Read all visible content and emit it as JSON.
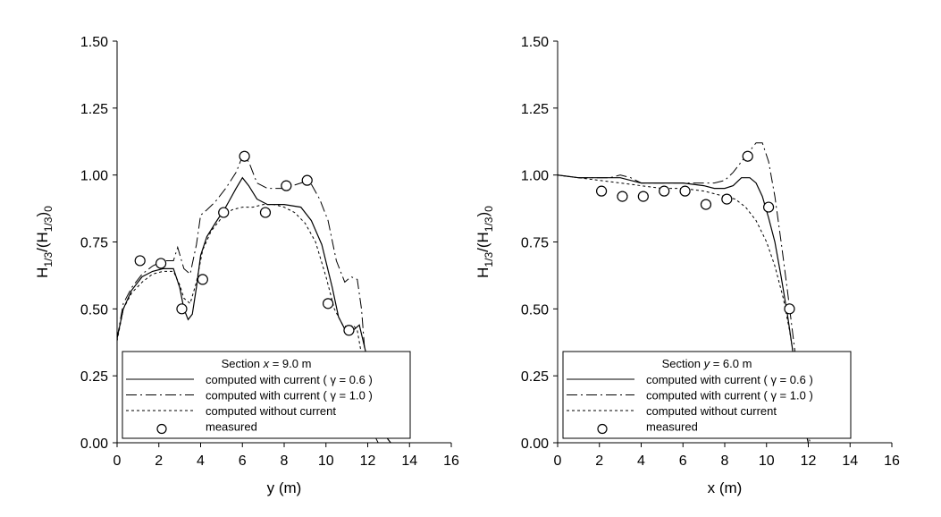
{
  "chart_data": [
    {
      "type": "line",
      "xlabel": "y (m)",
      "ylabel": "H",
      "ylabel_sub1": "1/3",
      "ylabel_mid": "/(H",
      "ylabel_sub2": "1/3",
      "ylabel_end": ")",
      "ylabel_sub3": "0",
      "xlim": [
        0,
        16
      ],
      "ylim": [
        0,
        1.5
      ],
      "xticks": [
        "0",
        "2",
        "4",
        "6",
        "8",
        "10",
        "12",
        "14",
        "16"
      ],
      "yticks": [
        "0.00",
        "0.25",
        "0.50",
        "0.75",
        "1.00",
        "1.25",
        "1.50"
      ],
      "grid": false,
      "legend": {
        "position": "bottom-left",
        "title_pre": "Section ",
        "title_var": "x",
        "title_post": " = 9.0 m",
        "entries": [
          "computed with current ( γ = 0.6 )",
          "computed with current ( γ = 1.0 )",
          "computed without current",
          "measured"
        ]
      },
      "series": [
        {
          "style": "solid",
          "x": [
            0,
            0.3,
            0.7,
            1.2,
            1.7,
            2.2,
            2.7,
            3.0,
            3.2,
            3.4,
            3.6,
            3.8,
            4.0,
            4.3,
            4.7,
            5.2,
            5.7,
            6.0,
            6.3,
            6.7,
            7.2,
            8.0,
            8.8,
            9.3,
            9.8,
            10.3,
            10.6,
            11.0,
            11.3,
            11.6,
            11.9,
            12.2,
            12.6,
            12.9,
            13.1
          ],
          "y": [
            0.39,
            0.5,
            0.57,
            0.62,
            0.64,
            0.65,
            0.65,
            0.58,
            0.5,
            0.46,
            0.48,
            0.58,
            0.7,
            0.77,
            0.82,
            0.88,
            0.95,
            0.99,
            0.96,
            0.91,
            0.89,
            0.89,
            0.88,
            0.83,
            0.74,
            0.58,
            0.47,
            0.41,
            0.42,
            0.44,
            0.34,
            0.19,
            0.07,
            0.02,
            0.0
          ]
        },
        {
          "style": "dashdot",
          "x": [
            0,
            0.3,
            0.7,
            1.2,
            1.7,
            2.2,
            2.7,
            2.9,
            3.2,
            3.5,
            3.8,
            4.0,
            4.3,
            4.7,
            5.2,
            5.7,
            6.0,
            6.3,
            6.7,
            7.2,
            8.0,
            8.8,
            9.2,
            9.7,
            10.1,
            10.5,
            10.9,
            11.2,
            11.5,
            11.7,
            11.9,
            12.1,
            12.3,
            12.5
          ],
          "y": [
            0.39,
            0.52,
            0.58,
            0.63,
            0.66,
            0.68,
            0.68,
            0.73,
            0.65,
            0.63,
            0.74,
            0.85,
            0.87,
            0.9,
            0.95,
            1.01,
            1.07,
            1.05,
            0.97,
            0.95,
            0.95,
            0.97,
            0.98,
            0.91,
            0.83,
            0.68,
            0.6,
            0.62,
            0.61,
            0.5,
            0.3,
            0.12,
            0.03,
            0.0
          ]
        },
        {
          "style": "dotted",
          "x": [
            0,
            0.3,
            0.7,
            1.2,
            1.7,
            2.2,
            2.7,
            3.0,
            3.2,
            3.5,
            3.8,
            4.1,
            4.5,
            5.0,
            5.5,
            6.0,
            6.5,
            7.0,
            7.5,
            8.0,
            8.5,
            9.0,
            9.5,
            10.0,
            10.4,
            10.8,
            11.1,
            11.3,
            11.5,
            11.7,
            11.9,
            12.1,
            12.3
          ],
          "y": [
            0.38,
            0.5,
            0.56,
            0.6,
            0.63,
            0.64,
            0.64,
            0.59,
            0.54,
            0.52,
            0.6,
            0.72,
            0.79,
            0.84,
            0.87,
            0.88,
            0.88,
            0.89,
            0.89,
            0.88,
            0.86,
            0.82,
            0.75,
            0.62,
            0.5,
            0.44,
            0.43,
            0.44,
            0.42,
            0.33,
            0.2,
            0.08,
            0.02
          ]
        },
        {
          "style": "markers",
          "x": [
            1.1,
            2.1,
            3.1,
            4.1,
            5.1,
            6.1,
            7.1,
            8.1,
            9.1,
            10.1,
            11.1
          ],
          "y": [
            0.68,
            0.67,
            0.5,
            0.61,
            0.86,
            1.07,
            0.86,
            0.96,
            0.98,
            0.52,
            0.42
          ]
        }
      ]
    },
    {
      "type": "line",
      "xlabel": "x (m)",
      "ylabel": "H",
      "ylabel_sub1": "1/3",
      "ylabel_mid": "/(H",
      "ylabel_sub2": "1/3",
      "ylabel_end": ")",
      "ylabel_sub3": "0",
      "xlim": [
        0,
        16
      ],
      "ylim": [
        0,
        1.5
      ],
      "xticks": [
        "0",
        "2",
        "4",
        "6",
        "8",
        "10",
        "12",
        "14",
        "16"
      ],
      "yticks": [
        "0.00",
        "0.25",
        "0.50",
        "0.75",
        "1.00",
        "1.25",
        "1.50"
      ],
      "grid": false,
      "legend": {
        "position": "bottom-left",
        "title_pre": "Section ",
        "title_var": "y",
        "title_post": " = 6.0 m",
        "entries": [
          "computed with current ( γ = 0.6 )",
          "computed with current ( γ = 1.0 )",
          "computed without current",
          "measured"
        ]
      },
      "series": [
        {
          "style": "solid",
          "x": [
            0,
            1,
            2,
            2.5,
            3,
            3.5,
            4,
            5,
            6,
            7,
            7.5,
            8,
            8.4,
            8.8,
            9.2,
            9.5,
            9.8,
            10.1,
            10.4,
            10.7,
            11.0,
            11.3,
            11.6,
            11.9,
            12.0
          ],
          "y": [
            1.0,
            0.99,
            0.99,
            0.99,
            0.99,
            0.98,
            0.97,
            0.97,
            0.97,
            0.96,
            0.95,
            0.95,
            0.96,
            0.99,
            0.99,
            0.97,
            0.92,
            0.84,
            0.75,
            0.62,
            0.48,
            0.32,
            0.15,
            0.03,
            0.0
          ]
        },
        {
          "style": "dashdot",
          "x": [
            0,
            1,
            2,
            2.5,
            3,
            3.5,
            4,
            5,
            6,
            7,
            7.5,
            8,
            8.4,
            8.8,
            9.2,
            9.5,
            9.8,
            10.1,
            10.4,
            10.7,
            11.0,
            11.3,
            11.6,
            11.9,
            12.1
          ],
          "y": [
            1.0,
            0.99,
            0.99,
            0.99,
            1.0,
            0.99,
            0.97,
            0.97,
            0.97,
            0.97,
            0.97,
            0.98,
            1.01,
            1.05,
            1.09,
            1.12,
            1.12,
            1.05,
            0.92,
            0.75,
            0.57,
            0.38,
            0.2,
            0.05,
            0.0
          ]
        },
        {
          "style": "dotted",
          "x": [
            0,
            1,
            2,
            3,
            4,
            5,
            6,
            7,
            8,
            8.5,
            9.0,
            9.5,
            10.0,
            10.4,
            10.8,
            11.1,
            11.4,
            11.7,
            12.0
          ],
          "y": [
            1.0,
            0.99,
            0.98,
            0.97,
            0.96,
            0.95,
            0.95,
            0.94,
            0.92,
            0.91,
            0.88,
            0.83,
            0.75,
            0.66,
            0.54,
            0.42,
            0.27,
            0.1,
            0.0
          ]
        },
        {
          "style": "markers",
          "x": [
            2.1,
            3.1,
            4.1,
            5.1,
            6.1,
            7.1,
            8.1,
            9.1,
            10.1,
            11.1
          ],
          "y": [
            0.94,
            0.92,
            0.92,
            0.94,
            0.94,
            0.89,
            0.91,
            1.07,
            0.88,
            0.5
          ]
        }
      ]
    }
  ]
}
